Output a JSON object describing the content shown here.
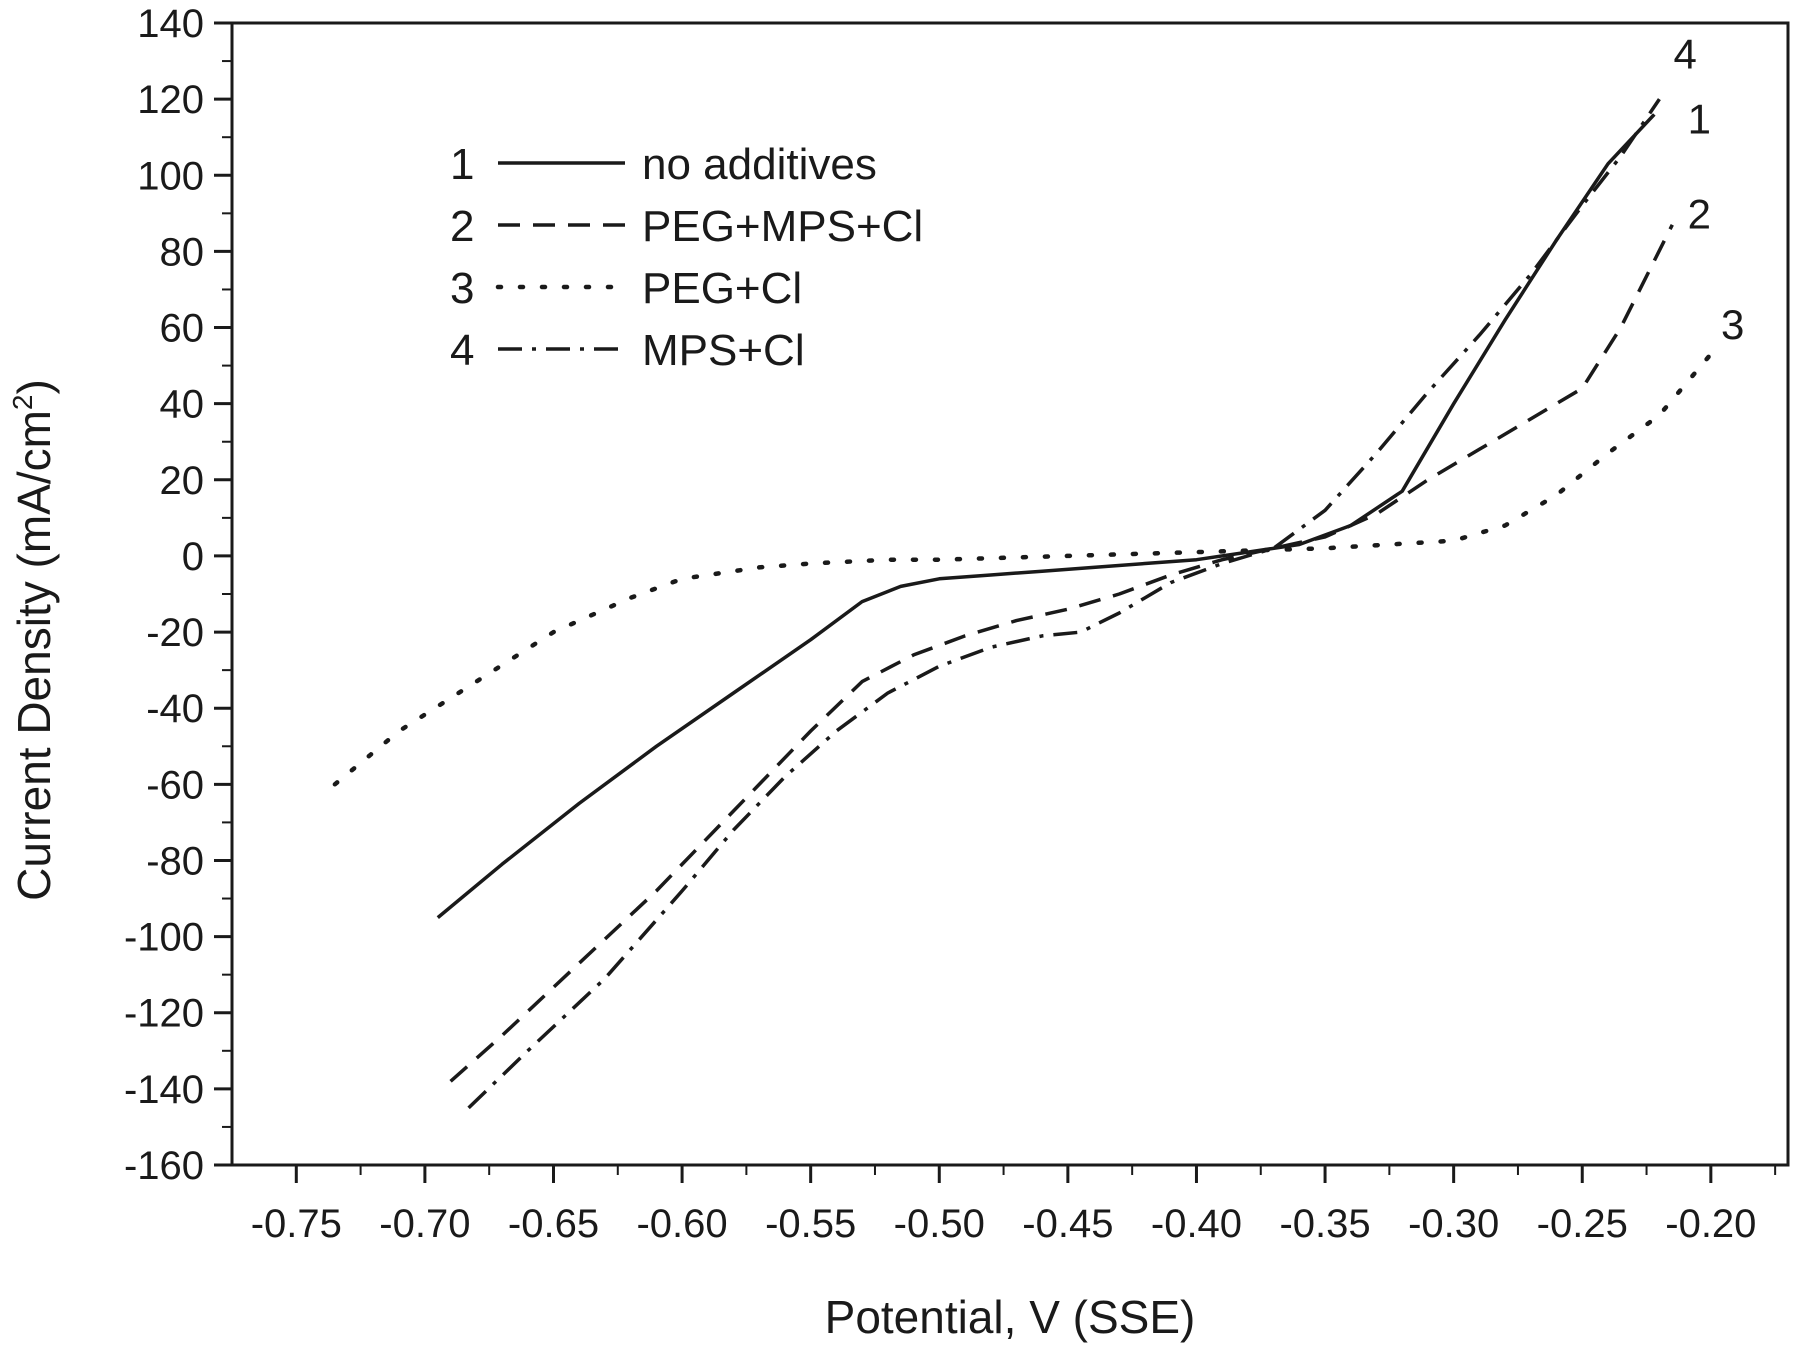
{
  "chart_data": {
    "type": "line",
    "title": "",
    "xlabel": "Potential, V (SSE)",
    "ylabel_main": "Current Density (mA/cm",
    "ylabel_sup": "2",
    "ylabel_close": ")",
    "xlim": [
      -0.775,
      -0.17
    ],
    "ylim": [
      -160,
      140
    ],
    "x_ticks": [
      -0.75,
      -0.7,
      -0.65,
      -0.6,
      -0.55,
      -0.5,
      -0.45,
      -0.4,
      -0.35,
      -0.3,
      -0.25,
      -0.2
    ],
    "x_tick_labels": [
      "-0.75",
      "-0.70",
      "-0.65",
      "-0.60",
      "-0.55",
      "-0.50",
      "-0.45",
      "-0.40",
      "-0.35",
      "-0.30",
      "-0.25",
      "-0.20"
    ],
    "y_ticks": [
      -160,
      -140,
      -120,
      -100,
      -80,
      -60,
      -40,
      -20,
      0,
      20,
      40,
      60,
      80,
      100,
      120,
      140
    ],
    "y_tick_labels": [
      "-160",
      "-140",
      "-120",
      "-100",
      "-80",
      "-60",
      "-40",
      "-20",
      "0",
      "20",
      "40",
      "60",
      "80",
      "100",
      "120",
      "140"
    ],
    "grid": false,
    "legend_position": "top-left",
    "series": [
      {
        "id": "1",
        "name": "no additives",
        "style": "solid",
        "x": [
          -0.695,
          -0.67,
          -0.64,
          -0.61,
          -0.58,
          -0.55,
          -0.53,
          -0.515,
          -0.5,
          -0.48,
          -0.46,
          -0.44,
          -0.42,
          -0.4,
          -0.38,
          -0.36,
          -0.34,
          -0.32,
          -0.3,
          -0.28,
          -0.26,
          -0.24,
          -0.222
        ],
        "y": [
          -95,
          -81,
          -65,
          -50,
          -36,
          -22,
          -12,
          -8,
          -6,
          -5,
          -4,
          -3,
          -2,
          -1,
          1,
          3,
          8,
          17,
          40,
          62,
          83,
          103,
          116
        ]
      },
      {
        "id": "2",
        "name": "PEG+MPS+Cl",
        "style": "dashed",
        "x": [
          -0.69,
          -0.67,
          -0.64,
          -0.61,
          -0.58,
          -0.55,
          -0.53,
          -0.51,
          -0.49,
          -0.47,
          -0.45,
          -0.43,
          -0.41,
          -0.39,
          -0.37,
          -0.35,
          -0.33,
          -0.31,
          -0.29,
          -0.27,
          -0.25,
          -0.235,
          -0.215
        ],
        "y": [
          -138,
          -126,
          -107,
          -88,
          -67,
          -46,
          -33,
          -26,
          -21,
          -17,
          -14,
          -10,
          -5,
          -1,
          2,
          5,
          11,
          20,
          28,
          36,
          44,
          60,
          87
        ]
      },
      {
        "id": "3",
        "name": "PEG+Cl",
        "style": "dotted",
        "x": [
          -0.735,
          -0.71,
          -0.68,
          -0.65,
          -0.62,
          -0.6,
          -0.57,
          -0.55,
          -0.52,
          -0.5,
          -0.45,
          -0.4,
          -0.35,
          -0.3,
          -0.28,
          -0.26,
          -0.24,
          -0.22,
          -0.2
        ],
        "y": [
          -60,
          -46,
          -33,
          -20,
          -11,
          -6,
          -3,
          -2,
          -1,
          -1,
          0,
          1,
          2,
          4,
          8,
          16,
          27,
          37,
          53
        ]
      },
      {
        "id": "4",
        "name": "MPS+Cl",
        "style": "dash-dot",
        "x": [
          -0.683,
          -0.66,
          -0.63,
          -0.6,
          -0.58,
          -0.56,
          -0.54,
          -0.52,
          -0.5,
          -0.48,
          -0.46,
          -0.445,
          -0.43,
          -0.41,
          -0.39,
          -0.37,
          -0.35,
          -0.33,
          -0.31,
          -0.29,
          -0.27,
          -0.25,
          -0.235,
          -0.22
        ],
        "y": [
          -145,
          -130,
          -111,
          -88,
          -72,
          -58,
          -46,
          -36,
          -29,
          -24,
          -21,
          -20,
          -15,
          -7,
          -2,
          2,
          12,
          27,
          43,
          58,
          74,
          92,
          105,
          120
        ]
      }
    ],
    "legend": [
      {
        "number": "1",
        "label": "no additives"
      },
      {
        "number": "2",
        "label": "PEG+MPS+Cl"
      },
      {
        "number": "3",
        "label": "PEG+Cl"
      },
      {
        "number": "4",
        "label": "MPS+Cl"
      }
    ],
    "end_labels": [
      {
        "text": "4",
        "x": -0.21,
        "y": 128
      },
      {
        "text": "1",
        "x": -0.2045,
        "y": 111
      },
      {
        "text": "2",
        "x": -0.2045,
        "y": 86
      },
      {
        "text": "3",
        "x": -0.1915,
        "y": 57
      }
    ]
  }
}
